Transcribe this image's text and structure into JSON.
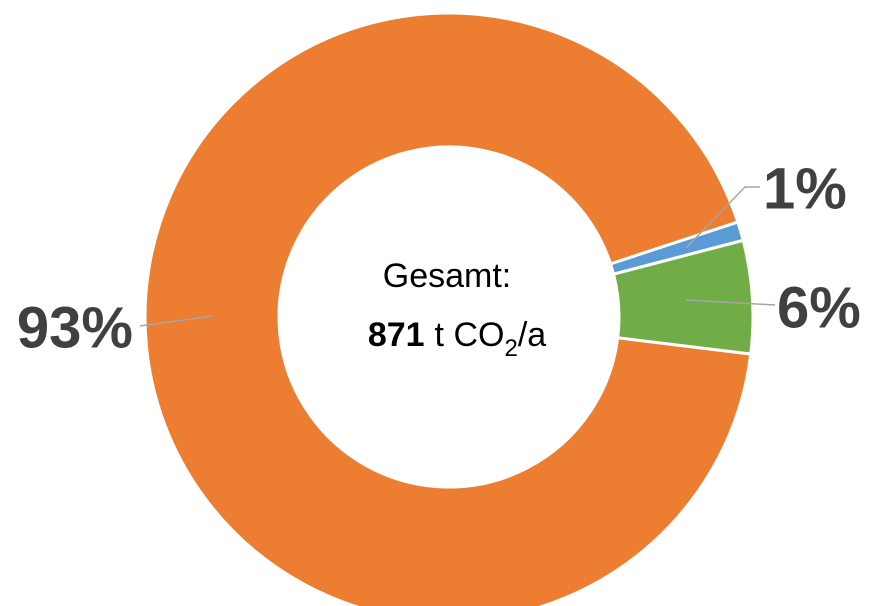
{
  "chart_data": {
    "type": "donut",
    "categories": [
      null,
      null,
      null
    ],
    "values": [
      93,
      1,
      6
    ],
    "value_labels": [
      "93%",
      "1%",
      "6%"
    ],
    "colors": [
      "#ED7D31",
      "#5B9BD5",
      "#70AD47"
    ],
    "center_label": {
      "line1": "Gesamt:",
      "value": "871",
      "unit_pre": "t CO",
      "unit_sub": "2",
      "unit_post": "/a"
    }
  }
}
